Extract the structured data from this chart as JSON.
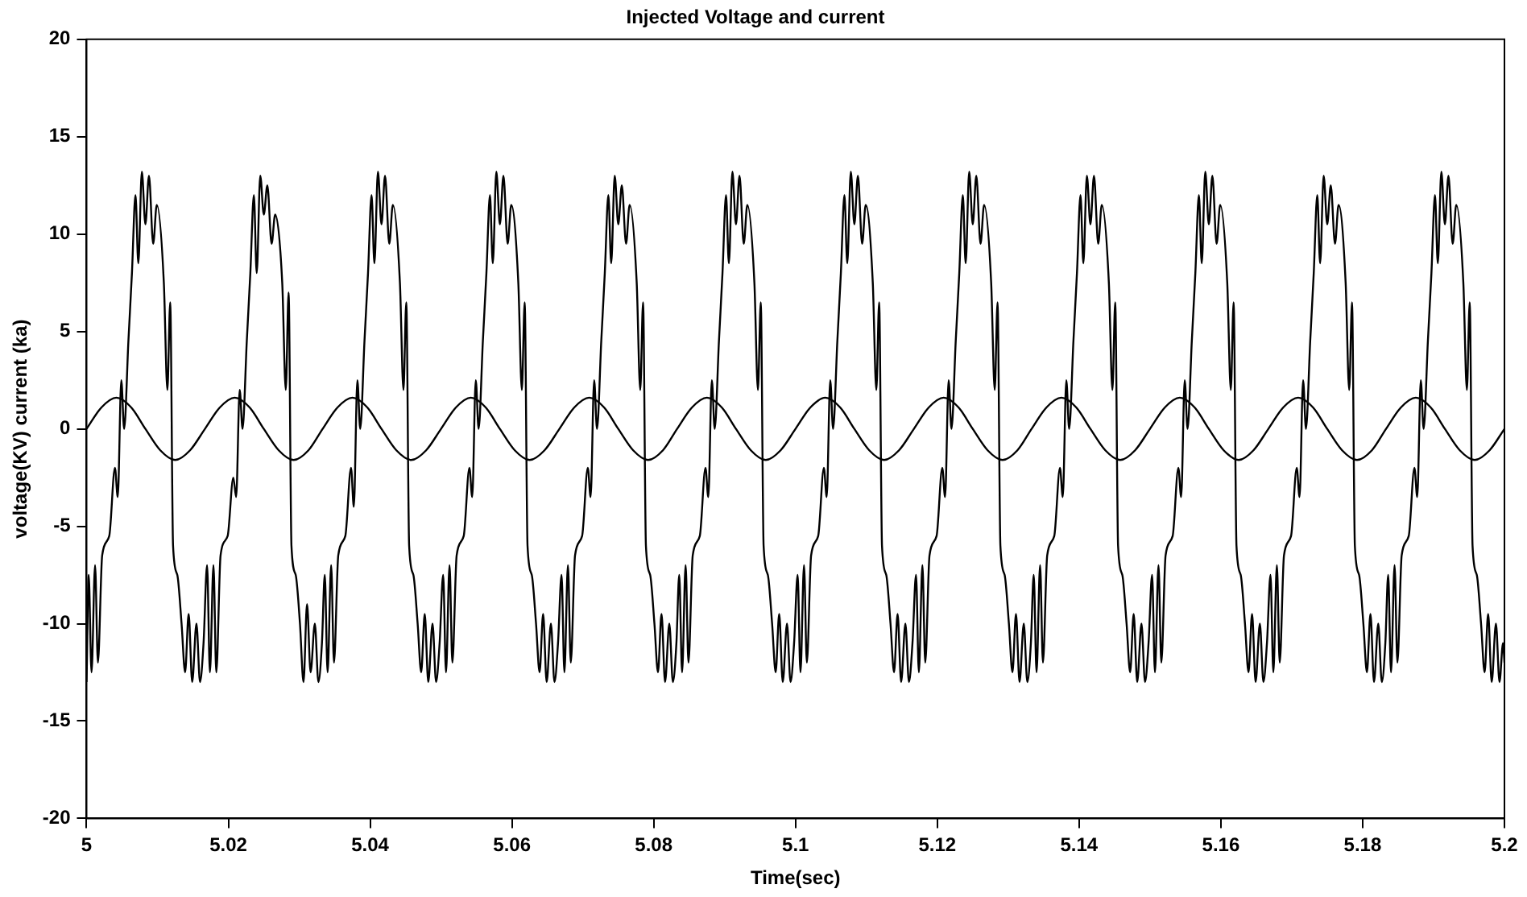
{
  "chart_data": {
    "type": "line",
    "title": "Injected Voltage and current",
    "xlabel": "Time(sec)",
    "ylabel": "voltage(KV) current (ka)",
    "xlim": [
      5,
      5.2
    ],
    "xticks": [
      5,
      5.02,
      5.04,
      5.06,
      5.08,
      5.1,
      5.12,
      5.14,
      5.16,
      5.18,
      5.2
    ],
    "ylim": [
      -20,
      20
    ],
    "yticks": [
      -20,
      -15,
      -10,
      -5,
      0,
      5,
      10,
      15,
      20
    ],
    "grid": false,
    "legend": false,
    "marker": "none",
    "line_style": "solid",
    "series": [
      {
        "color": "#000000",
        "x": [
          5,
          5.0003,
          5.0007,
          5.0012,
          5.0016,
          5.0022,
          5.0032,
          5.004,
          5.0044,
          5.0049,
          5.0053,
          5.0059,
          5.0064,
          5.0069,
          5.0073,
          5.0078,
          5.0083,
          5.0088,
          5.0094,
          5.0099,
          5.0109,
          5.0114,
          5.0118,
          5.0122,
          5.0128,
          5.0134,
          5.0139,
          5.0144,
          5.0149,
          5.0155,
          5.016,
          5.0165,
          5.017,
          5.0174,
          5.0179,
          5.0183,
          5.0189,
          5.0199,
          5.0207,
          5.0211,
          5.0216,
          5.022,
          5.0226,
          5.0231,
          5.0236,
          5.024,
          5.0245,
          5.025,
          5.0255,
          5.0261,
          5.0266,
          5.0276,
          5.0281,
          5.0285,
          5.0289,
          5.0295,
          5.0301,
          5.0306,
          5.0311,
          5.0316,
          5.0322,
          5.0327,
          5.0332,
          5.0336,
          5.034,
          5.0345,
          5.0349,
          5.0355,
          5.0365,
          5.0373,
          5.0377,
          5.0382,
          5.0386,
          5.0392,
          5.0397,
          5.0402,
          5.0406,
          5.0411,
          5.0416,
          5.0421,
          5.0427,
          5.0432,
          5.0442,
          5.0447,
          5.0451,
          5.0455,
          5.0461,
          5.0467,
          5.0472,
          5.0477,
          5.0482,
          5.0488,
          5.0493,
          5.0498,
          5.0503,
          5.0507,
          5.0512,
          5.0516,
          5.0522,
          5.0532,
          5.054,
          5.0544,
          5.0549,
          5.0553,
          5.0559,
          5.0564,
          5.0569,
          5.0573,
          5.0578,
          5.0583,
          5.0588,
          5.0594,
          5.0599,
          5.0609,
          5.0614,
          5.0618,
          5.0622,
          5.0628,
          5.0634,
          5.0639,
          5.0644,
          5.0649,
          5.0655,
          5.066,
          5.0665,
          5.067,
          5.0674,
          5.0679,
          5.0683,
          5.0689,
          5.0699,
          5.0707,
          5.0711,
          5.0716,
          5.072,
          5.0726,
          5.0731,
          5.0736,
          5.074,
          5.0745,
          5.075,
          5.0755,
          5.0761,
          5.0766,
          5.0776,
          5.0781,
          5.0785,
          5.0789,
          5.0795,
          5.0801,
          5.0806,
          5.0811,
          5.0816,
          5.0822,
          5.0827,
          5.0832,
          5.0836,
          5.084,
          5.0845,
          5.0849,
          5.0855,
          5.0865,
          5.0873,
          5.0877,
          5.0882,
          5.0886,
          5.0892,
          5.0897,
          5.0902,
          5.0906,
          5.0911,
          5.0916,
          5.0921,
          5.0927,
          5.0932,
          5.0942,
          5.0947,
          5.0951,
          5.0955,
          5.0961,
          5.0967,
          5.0972,
          5.0977,
          5.0982,
          5.0988,
          5.0993,
          5.0998,
          5.1003,
          5.1007,
          5.1012,
          5.1016,
          5.1022,
          5.1032,
          5.104,
          5.1044,
          5.1049,
          5.1053,
          5.1059,
          5.1064,
          5.1069,
          5.1073,
          5.1078,
          5.1083,
          5.1088,
          5.1094,
          5.1099,
          5.1109,
          5.1114,
          5.1118,
          5.1122,
          5.1128,
          5.1134,
          5.1139,
          5.1144,
          5.1149,
          5.1155,
          5.116,
          5.1165,
          5.117,
          5.1174,
          5.1179,
          5.1183,
          5.1189,
          5.1199,
          5.1207,
          5.1211,
          5.1216,
          5.122,
          5.1226,
          5.1231,
          5.1236,
          5.124,
          5.1245,
          5.125,
          5.1255,
          5.1261,
          5.1266,
          5.1276,
          5.1281,
          5.1285,
          5.1289,
          5.1295,
          5.1301,
          5.1306,
          5.1311,
          5.1316,
          5.1322,
          5.1327,
          5.1332,
          5.1336,
          5.134,
          5.1345,
          5.1349,
          5.1355,
          5.1365,
          5.1373,
          5.1377,
          5.1382,
          5.1386,
          5.1392,
          5.1397,
          5.1402,
          5.1406,
          5.1411,
          5.1416,
          5.1421,
          5.1427,
          5.1432,
          5.1442,
          5.1447,
          5.1451,
          5.1455,
          5.1461,
          5.1467,
          5.1472,
          5.1477,
          5.1482,
          5.1488,
          5.1493,
          5.1498,
          5.1503,
          5.1507,
          5.1512,
          5.1516,
          5.1522,
          5.1532,
          5.154,
          5.1544,
          5.1549,
          5.1553,
          5.1559,
          5.1564,
          5.1569,
          5.1573,
          5.1578,
          5.1583,
          5.1588,
          5.1594,
          5.1599,
          5.1609,
          5.1614,
          5.1618,
          5.1622,
          5.1628,
          5.1634,
          5.1639,
          5.1644,
          5.1649,
          5.1655,
          5.166,
          5.1665,
          5.167,
          5.1674,
          5.1679,
          5.1683,
          5.1689,
          5.1699,
          5.1707,
          5.1711,
          5.1716,
          5.172,
          5.1726,
          5.1731,
          5.1736,
          5.174,
          5.1745,
          5.175,
          5.1755,
          5.1761,
          5.1766,
          5.1776,
          5.1781,
          5.1785,
          5.1789,
          5.1795,
          5.1801,
          5.1806,
          5.1811,
          5.1816,
          5.1822,
          5.1827,
          5.1832,
          5.1836,
          5.184,
          5.1845,
          5.1849,
          5.1855,
          5.1865,
          5.1873,
          5.1877,
          5.1882,
          5.1886,
          5.1892,
          5.1897,
          5.1902,
          5.1906,
          5.1911,
          5.1916,
          5.1921,
          5.1927,
          5.1932,
          5.1942,
          5.1947,
          5.1951,
          5.1955,
          5.1961,
          5.1967,
          5.1972,
          5.1977,
          5.1982,
          5.1988,
          5.1993,
          5.1998,
          5.2
        ],
        "values": [
          -13,
          -7.5,
          -12.5,
          -7,
          -12,
          -6.5,
          -5.5,
          -2,
          -3.5,
          2.5,
          0,
          4.5,
          8,
          12,
          8.5,
          13.2,
          10.5,
          13,
          9.5,
          11.5,
          7.5,
          2,
          6.5,
          -6,
          -7.5,
          -10,
          -12.5,
          -9.5,
          -13,
          -10,
          -13,
          -11,
          -7,
          -12.5,
          -7,
          -12.5,
          -6.5,
          -5.5,
          -2.5,
          -3.5,
          2,
          0,
          4.5,
          8,
          12,
          8,
          13,
          11,
          12.5,
          9.5,
          11,
          7.5,
          2,
          7,
          -6,
          -7.5,
          -10,
          -13,
          -9,
          -12.5,
          -10,
          -13,
          -11,
          -7.5,
          -12.5,
          -7,
          -12,
          -6.5,
          -5.5,
          -2,
          -4,
          2.5,
          0,
          4.5,
          8,
          12,
          8.5,
          13.2,
          10.5,
          13,
          9.5,
          11.5,
          7.5,
          2,
          6.5,
          -6,
          -7.5,
          -10,
          -12.5,
          -9.5,
          -13,
          -10,
          -13,
          -11,
          -7.5,
          -12.5,
          -7,
          -12,
          -6.5,
          -5.5,
          -2,
          -3.5,
          2.5,
          0,
          4.5,
          8,
          12,
          8.5,
          13.2,
          10.5,
          13,
          9.5,
          11.5,
          7.5,
          2,
          6.5,
          -6,
          -7.5,
          -10,
          -12.5,
          -9.5,
          -13,
          -10,
          -13,
          -11,
          -7.5,
          -12.5,
          -7,
          -12,
          -6.5,
          -5.5,
          -2,
          -3.5,
          2.5,
          0,
          4.5,
          8,
          12,
          8.5,
          13,
          10.5,
          12.5,
          9.5,
          11.5,
          7.5,
          2,
          6.5,
          -6,
          -7.5,
          -10,
          -12.5,
          -9.5,
          -13,
          -10,
          -13,
          -11,
          -7.5,
          -12.5,
          -7,
          -12,
          -6.5,
          -5.5,
          -2,
          -3.5,
          2.5,
          0,
          4.5,
          8,
          12,
          8.5,
          13.2,
          10.5,
          13,
          9.5,
          11.5,
          7.5,
          2,
          6.5,
          -6,
          -7.5,
          -10,
          -12.5,
          -9.5,
          -13,
          -10,
          -13,
          -11,
          -7.5,
          -12.5,
          -7,
          -12,
          -6.5,
          -5.5,
          -2,
          -3.5,
          2.5,
          0,
          4.5,
          8,
          12,
          8.5,
          13.2,
          10.5,
          13,
          9.5,
          11.5,
          7.5,
          2,
          6.5,
          -6,
          -7.5,
          -10,
          -12.5,
          -9.5,
          -13,
          -10,
          -13,
          -11,
          -7.5,
          -12.5,
          -7,
          -12,
          -6.5,
          -5.5,
          -2,
          -3.5,
          2.5,
          0,
          4.5,
          8,
          12,
          8.5,
          13.2,
          10.5,
          13,
          9.5,
          11.5,
          7.5,
          2,
          6.5,
          -6,
          -7.5,
          -10,
          -12.5,
          -9.5,
          -13,
          -10,
          -13,
          -11,
          -7.5,
          -12.5,
          -7,
          -12,
          -6.5,
          -5.5,
          -2,
          -3.5,
          2.5,
          0,
          4.5,
          8,
          12,
          8.5,
          13,
          10.5,
          13,
          9.5,
          11.5,
          7.5,
          2,
          6.5,
          -6,
          -7.5,
          -10,
          -12.5,
          -9.5,
          -13,
          -10,
          -13,
          -11,
          -7.5,
          -12.5,
          -7,
          -12,
          -6.5,
          -5.5,
          -2,
          -3.5,
          2.5,
          0,
          4.5,
          8,
          12,
          8.5,
          13.2,
          10.5,
          13,
          9.5,
          11.5,
          7.5,
          2,
          6.5,
          -6,
          -7.5,
          -10,
          -12.5,
          -9.5,
          -13,
          -10,
          -13,
          -11,
          -7.5,
          -12.5,
          -7,
          -12,
          -6.5,
          -5.5,
          -2,
          -3.5,
          2.5,
          0,
          4.5,
          8,
          12,
          8.5,
          13,
          10.5,
          12.5,
          9.5,
          11.5,
          7.5,
          2,
          6.5,
          -6,
          -7.5,
          -10,
          -12.5,
          -9.5,
          -13,
          -10,
          -13,
          -11,
          -7.5,
          -12.5,
          -7,
          -12,
          -6.5,
          -5.5,
          -2,
          -3.5,
          2.5,
          0,
          4.5,
          8,
          12,
          8.5,
          13.2,
          10.5,
          13,
          9.5,
          11.5,
          7.5,
          2,
          6.5,
          -6,
          -7.5,
          -10,
          -12.5,
          -9.5,
          -13,
          -10,
          -13,
          -11,
          -12
        ]
      },
      {
        "color": "#000000",
        "x": [
          5,
          5.0021,
          5.0042,
          5.0063,
          5.0083,
          5.0104,
          5.0125,
          5.0146,
          5.0167,
          5.0188,
          5.0209,
          5.023,
          5.025,
          5.0271,
          5.0292,
          5.0313,
          5.0333,
          5.0354,
          5.0375,
          5.0396,
          5.0416,
          5.0437,
          5.0458,
          5.0479,
          5.05,
          5.0521,
          5.0542,
          5.0563,
          5.0583,
          5.0604,
          5.0625,
          5.0646,
          5.0667,
          5.0688,
          5.0709,
          5.073,
          5.075,
          5.0771,
          5.0792,
          5.0813,
          5.0833,
          5.0854,
          5.0875,
          5.0896,
          5.0916,
          5.0937,
          5.0958,
          5.0979,
          5.1,
          5.1021,
          5.1042,
          5.1063,
          5.1083,
          5.1104,
          5.1125,
          5.1146,
          5.1167,
          5.1188,
          5.1209,
          5.123,
          5.125,
          5.1271,
          5.1292,
          5.1313,
          5.1333,
          5.1354,
          5.1375,
          5.1396,
          5.1416,
          5.1437,
          5.1458,
          5.1479,
          5.15,
          5.1521,
          5.1542,
          5.1563,
          5.1583,
          5.1604,
          5.1625,
          5.1646,
          5.1667,
          5.1688,
          5.1709,
          5.173,
          5.175,
          5.1771,
          5.1792,
          5.1813,
          5.1833,
          5.1854,
          5.1875,
          5.1896,
          5.1916,
          5.1937,
          5.1958,
          5.1979,
          5.2
        ],
        "values": [
          0,
          1.1,
          1.6,
          1.1,
          0,
          -1.1,
          -1.6,
          -1.1,
          0,
          1.1,
          1.6,
          1.1,
          0,
          -1.1,
          -1.6,
          -1.1,
          0,
          1.1,
          1.6,
          1.1,
          0,
          -1.1,
          -1.6,
          -1.1,
          0,
          1.1,
          1.6,
          1.1,
          0,
          -1.1,
          -1.6,
          -1.1,
          0,
          1.1,
          1.6,
          1.1,
          0,
          -1.1,
          -1.6,
          -1.1,
          0,
          1.1,
          1.6,
          1.1,
          0,
          -1.1,
          -1.6,
          -1.1,
          0,
          1.1,
          1.6,
          1.1,
          0,
          -1.1,
          -1.6,
          -1.1,
          0,
          1.1,
          1.6,
          1.1,
          0,
          -1.1,
          -1.6,
          -1.1,
          0,
          1.1,
          1.6,
          1.1,
          0,
          -1.1,
          -1.6,
          -1.1,
          0,
          1.1,
          1.6,
          1.1,
          0,
          -1.1,
          -1.6,
          -1.1,
          0,
          1.1,
          1.6,
          1.1,
          0,
          -1.1,
          -1.6,
          -1.1,
          0,
          1.1,
          1.6,
          1.1,
          0,
          -1.1,
          -1.6,
          -1.1,
          0
        ]
      }
    ]
  }
}
